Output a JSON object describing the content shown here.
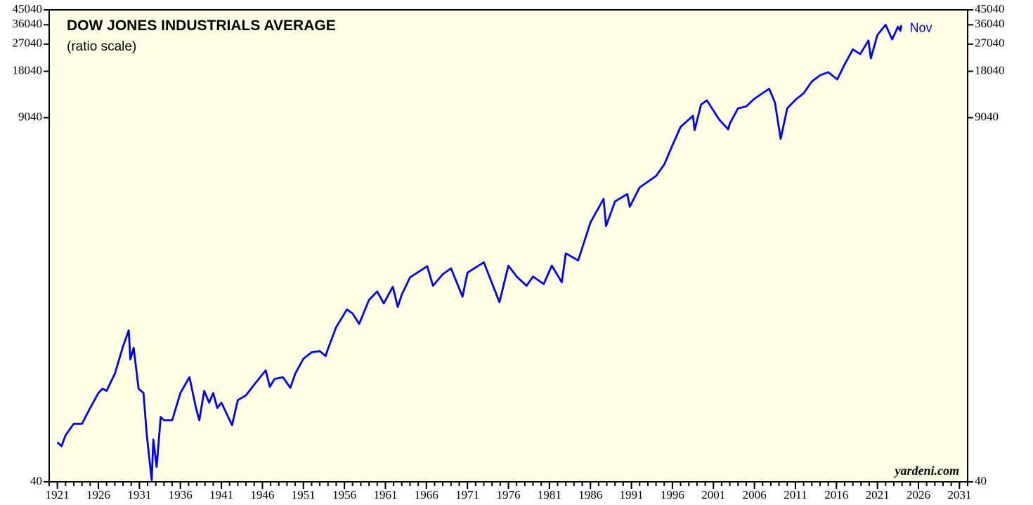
{
  "chart_data": {
    "type": "line",
    "title": "DOW JONES INDUSTRIALS AVERAGE",
    "subtitle": "(ratio scale)",
    "annotations": [
      "Nov",
      "yardeni.com"
    ],
    "log_scale": true,
    "ylim": [
      40,
      45040
    ],
    "yticks": [
      40,
      9040,
      18040,
      27040,
      36040,
      45040
    ],
    "xlim": [
      1920,
      2032
    ],
    "xticks": [
      1921,
      1926,
      1931,
      1936,
      1941,
      1946,
      1951,
      1956,
      1961,
      1966,
      1971,
      1976,
      1981,
      1986,
      1991,
      1996,
      2001,
      2006,
      2011,
      2016,
      2021,
      2026,
      2031
    ],
    "series": [
      {
        "name": "Dow Jones Industrials Average",
        "color": "#0000ee",
        "x": [
          1921.0,
          1921.5,
          1922,
          1923,
          1924,
          1925,
          1926,
          1926.5,
          1927,
          1928,
          1929.0,
          1929.7,
          1929.9,
          1930.3,
          1930.9,
          1931.5,
          1931.9,
          1932.5,
          1932.7,
          1933.1,
          1933.6,
          1934,
          1935,
          1936,
          1937.1,
          1937.9,
          1938.3,
          1938.9,
          1939.5,
          1940,
          1940.5,
          1941,
          1942.3,
          1943,
          1944,
          1945,
          1946.4,
          1946.9,
          1947.5,
          1948.5,
          1949.4,
          1950,
          1951,
          1952,
          1953,
          1953.7,
          1954,
          1955,
          1956.3,
          1957,
          1957.8,
          1959,
          1960,
          1960.8,
          1961.9,
          1962.5,
          1963,
          1964,
          1966.1,
          1966.8,
          1968,
          1969,
          1970.4,
          1971,
          1973,
          1974.9,
          1976,
          1977,
          1978.2,
          1979,
          1980.3,
          1981.3,
          1982.5,
          1983,
          1984.5,
          1985,
          1986,
          1987.6,
          1987.9,
          1989,
          1990.5,
          1990.8,
          1992,
          1994,
          1995,
          1996,
          1997,
          1998.5,
          1998.7,
          1999.5,
          2000.2,
          2001.7,
          2002.8,
          2003,
          2004,
          2005,
          2006,
          2007.8,
          2008.5,
          2009.2,
          2010,
          2011,
          2012,
          2013,
          2014,
          2015,
          2016.1,
          2017,
          2018,
          2018.9,
          2019.9,
          2020.2,
          2021,
          2022,
          2022.8,
          2023.5,
          2023.8,
          2023.9
        ],
        "values": [
          72,
          68,
          80,
          95,
          95,
          120,
          150,
          160,
          155,
          200,
          300,
          381,
          248,
          294,
          160,
          150,
          80,
          41,
          75,
          50,
          105,
          100,
          100,
          150,
          190,
          120,
          100,
          155,
          130,
          150,
          120,
          130,
          93,
          135,
          145,
          170,
          210,
          165,
          185,
          190,
          162,
          200,
          250,
          275,
          280,
          260,
          290,
          400,
          520,
          490,
          420,
          600,
          680,
          570,
          730,
          540,
          650,
          840,
          990,
          740,
          880,
          960,
          630,
          900,
          1050,
          580,
          1000,
          850,
          740,
          850,
          760,
          1000,
          780,
          1200,
          1080,
          1300,
          1900,
          2700,
          1800,
          2600,
          2900,
          2400,
          3200,
          3800,
          4500,
          6000,
          7900,
          9300,
          7500,
          11000,
          11700,
          8800,
          7600,
          8300,
          10400,
          10700,
          12000,
          13900,
          11300,
          6600,
          10400,
          11800,
          13000,
          15500,
          17000,
          17800,
          16000,
          20000,
          25000,
          23300,
          28500,
          21900,
          31000,
          36000,
          29000,
          35000,
          33000,
          35900
        ]
      }
    ],
    "background": "#ffffe6"
  }
}
